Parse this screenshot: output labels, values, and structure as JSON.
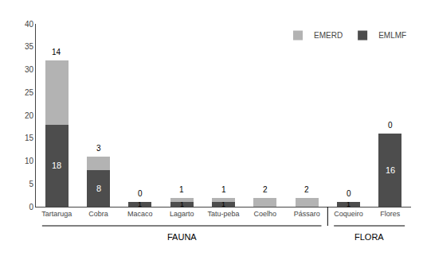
{
  "chart_data": {
    "type": "bar",
    "stacked": true,
    "categories": [
      "Tartaruga",
      "Cobra",
      "Macaco",
      "Lagarto",
      "Tatu-peba",
      "Coelho",
      "Pássaro",
      "Coqueiro",
      "Flores"
    ],
    "series": [
      {
        "name": "EMLMF",
        "color": "#4d4d4d",
        "values": [
          18,
          8,
          1,
          1,
          1,
          0,
          0,
          1,
          16
        ],
        "value_labels": [
          "18",
          "8",
          "1",
          "1",
          "1",
          null,
          null,
          "1",
          "16"
        ]
      },
      {
        "name": "EMERD",
        "color": "#b3b3b3",
        "values": [
          14,
          3,
          0,
          1,
          1,
          2,
          2,
          0,
          0
        ]
      }
    ],
    "annotations": [
      {
        "text": "FAUNA",
        "from": "Tartaruga",
        "to": "Pássaro"
      },
      {
        "text": "FLORA",
        "from": "Coqueiro",
        "to": "Flores"
      }
    ],
    "ylim": [
      0,
      40
    ],
    "yticks": [
      0,
      5,
      10,
      15,
      20,
      25,
      30,
      35,
      40
    ],
    "data_labels": true,
    "grid": false,
    "legend": "upper right"
  }
}
